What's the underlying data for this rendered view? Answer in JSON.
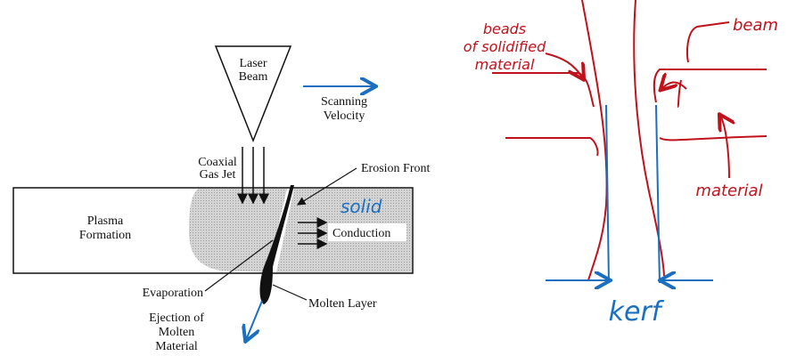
{
  "diagram": {
    "labels": [
      {
        "lines": [
          "Laser",
          "Beam"
        ]
      },
      {
        "lines": [
          "Scanning",
          "Velocity"
        ]
      },
      {
        "lines": [
          "Coaxial",
          "Gas Jet"
        ]
      },
      {
        "lines": [
          "Erosion Front"
        ]
      },
      {
        "lines": [
          "Plasma",
          "Formation"
        ]
      },
      {
        "lines": [
          "Conduction"
        ]
      },
      {
        "lines": [
          "Evaporation"
        ]
      },
      {
        "lines": [
          "Molten Layer"
        ]
      },
      {
        "lines": [
          "Ejection of",
          "Molten",
          "Material"
        ]
      }
    ],
    "annotations": [
      {
        "lines": [
          "solid"
        ]
      },
      {
        "lines": [
          "beads",
          "of solidified",
          "material"
        ]
      },
      {
        "lines": [
          "beam"
        ]
      },
      {
        "lines": [
          "material"
        ]
      },
      {
        "lines": [
          "kerf"
        ]
      }
    ]
  }
}
